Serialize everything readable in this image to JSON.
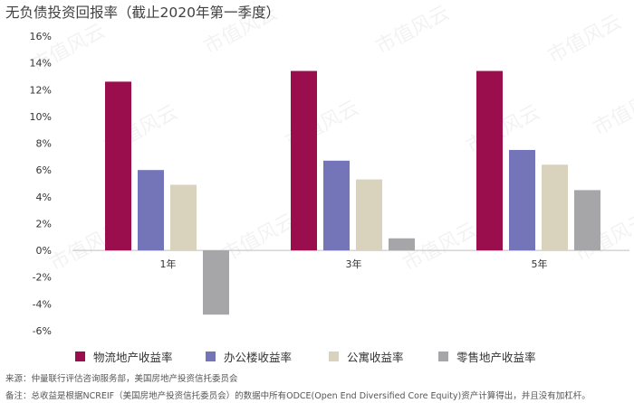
{
  "chart_data": {
    "type": "bar",
    "title": "无负债投资回报率（截止2020年第一季度）",
    "xlabel": "",
    "ylabel": "",
    "categories": [
      "1年",
      "3年",
      "5年"
    ],
    "series": [
      {
        "name": "物流地产收益率",
        "color": "#9b0e4e",
        "values": [
          12.6,
          13.4,
          13.4
        ]
      },
      {
        "name": "办公楼收益率",
        "color": "#7474b8",
        "values": [
          6.0,
          6.7,
          7.5
        ]
      },
      {
        "name": "公寓收益率",
        "color": "#d9d3bd",
        "values": [
          4.9,
          5.3,
          6.4
        ]
      },
      {
        "name": "零售地产收益率",
        "color": "#a6a6a9",
        "values": [
          -4.8,
          0.9,
          4.5
        ]
      }
    ],
    "ylim": [
      -6,
      16
    ],
    "yticks": [
      -6,
      -4,
      -2,
      0,
      2,
      4,
      6,
      8,
      10,
      12,
      14,
      16
    ],
    "ytick_labels": [
      "-6%",
      "-4%",
      "-2%",
      "0%",
      "2%",
      "4%",
      "6%",
      "8%",
      "10%",
      "12%",
      "14%",
      "16%"
    ],
    "legend_position": "bottom",
    "grid": false
  },
  "footnotes": {
    "source": "来源：仲量联行评估咨询服务部，美国房地产投资信托委员会",
    "note": "备注：总收益是根据NCREIF（美国房地产投资信托委员会）的数据中所有ODCE(Open End Diversified Core Equity)资产计算得出，并且没有加杠杆。"
  },
  "watermark": {
    "text": "市值风云"
  }
}
